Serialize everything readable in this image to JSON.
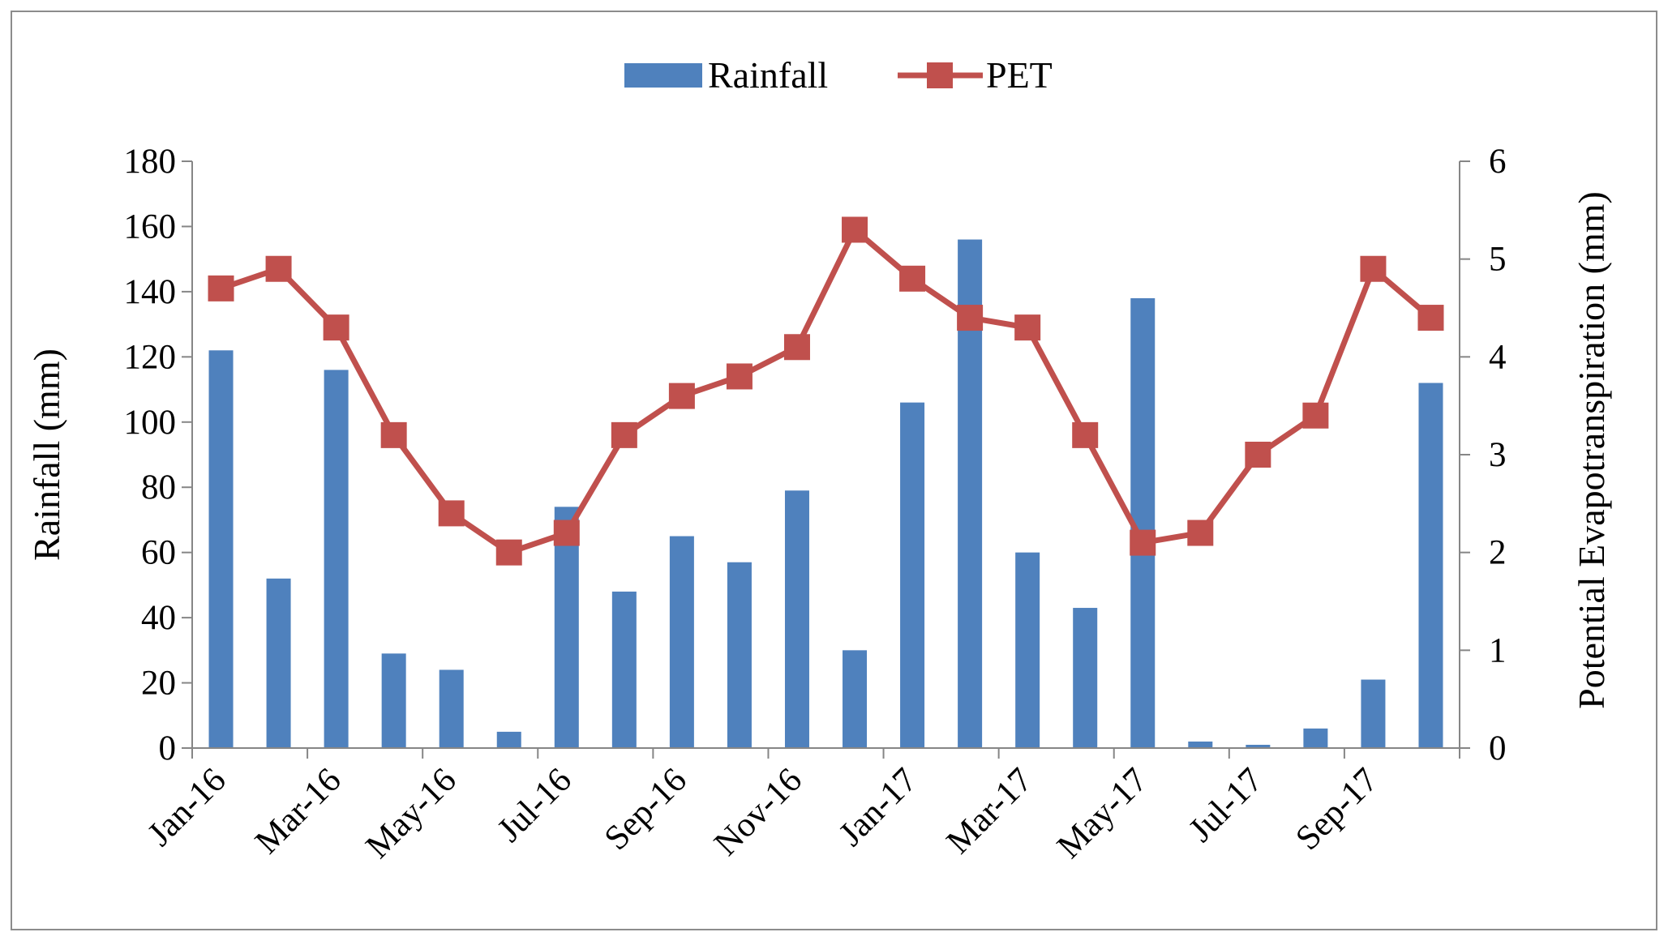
{
  "chart_data": {
    "type": "bar",
    "categories": [
      "Jan-16",
      "Feb-16",
      "Mar-16",
      "Apr-16",
      "May-16",
      "Jun-16",
      "Jul-16",
      "Aug-16",
      "Sep-16",
      "Oct-16",
      "Nov-16",
      "Dec-16",
      "Jan-17",
      "Feb-17",
      "Mar-17",
      "Apr-17",
      "May-17",
      "Jun-17",
      "Jul-17",
      "Aug-17",
      "Sep-17",
      "Oct-17"
    ],
    "x_tick_labels": [
      "Jan-16",
      "Mar-16",
      "May-16",
      "Jul-16",
      "Sep-16",
      "Nov-16",
      "Jan-17",
      "Mar-17",
      "May-17",
      "Jul-17",
      "Sep-17"
    ],
    "series": [
      {
        "name": "Rainfall",
        "type": "bar",
        "axis": "left",
        "color": "#4f81bd",
        "values": [
          122,
          52,
          116,
          29,
          24,
          5,
          74,
          48,
          65,
          57,
          79,
          30,
          106,
          156,
          60,
          43,
          138,
          2,
          1,
          6,
          21,
          112
        ]
      },
      {
        "name": "PET",
        "type": "line",
        "axis": "right",
        "color": "#c0504d",
        "values": [
          4.7,
          4.9,
          4.3,
          3.2,
          2.4,
          2.0,
          2.2,
          3.2,
          3.6,
          3.8,
          4.1,
          5.3,
          4.8,
          4.4,
          4.3,
          3.2,
          2.1,
          2.2,
          3.0,
          3.4,
          4.9,
          4.4
        ]
      }
    ],
    "ylabel": "Rainfall (mm)",
    "y2label": "Potential Evapotranspiration (mm)",
    "ylim": [
      0,
      180
    ],
    "y_ticks": [
      0,
      20,
      40,
      60,
      80,
      100,
      120,
      140,
      160,
      180
    ],
    "y2lim": [
      0,
      6
    ],
    "y2_ticks": [
      0,
      1,
      2,
      3,
      4,
      5,
      6
    ],
    "legend": [
      "Rainfall",
      "PET"
    ],
    "legend_position": "top-center",
    "grid": false
  }
}
